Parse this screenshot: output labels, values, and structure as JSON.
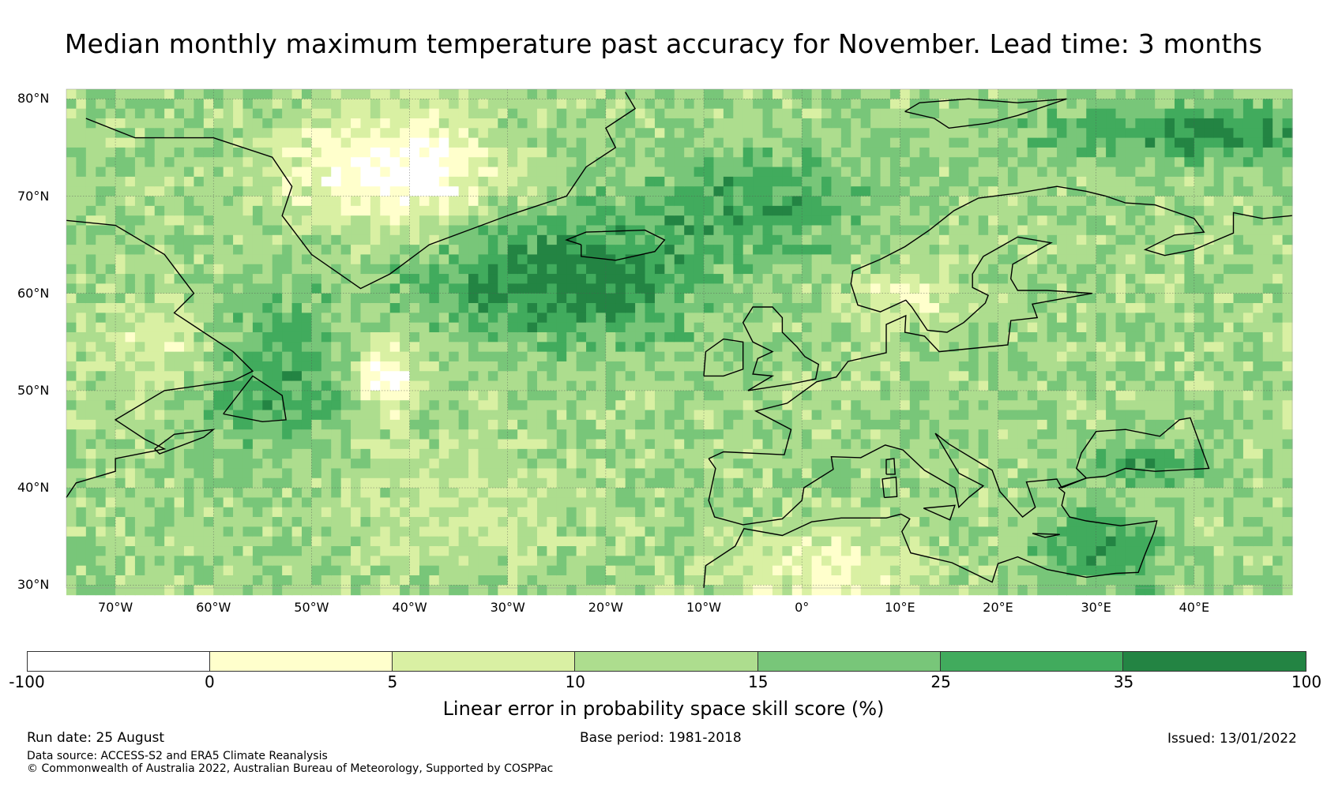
{
  "title": "Median monthly maximum temperature past accuracy for November. Lead time: 3 months",
  "map": {
    "lat_labels": [
      "80°N",
      "70°N",
      "60°N",
      "50°N",
      "40°N",
      "30°N"
    ],
    "lon_labels": [
      "70°W",
      "60°W",
      "50°W",
      "40°W",
      "30°W",
      "20°W",
      "10°W",
      "0°",
      "10°E",
      "20°E",
      "30°E",
      "40°E"
    ],
    "extent": {
      "lon": [
        -75,
        50
      ],
      "lat": [
        29,
        81
      ]
    }
  },
  "legend": {
    "ticks": [
      "-100",
      "0",
      "5",
      "10",
      "15",
      "25",
      "35",
      "100"
    ],
    "colors": [
      "#ffffff",
      "#ffffcc",
      "#d9f0a3",
      "#addd8e",
      "#78c679",
      "#41ab5d",
      "#238443"
    ],
    "label": "Linear error in probability space skill score (%)"
  },
  "footer": {
    "run_date": "Run date: 25 August",
    "base_period": "Base period: 1981-2018",
    "issued": "Issued: 13/01/2022",
    "data_source": "Data source: ACCESS-S2 and ERA5 Climate Reanalysis",
    "copyright": "© Commonwealth of Australia 2022, Australian Bureau of Meteorology, Supported by COSPPac"
  }
}
